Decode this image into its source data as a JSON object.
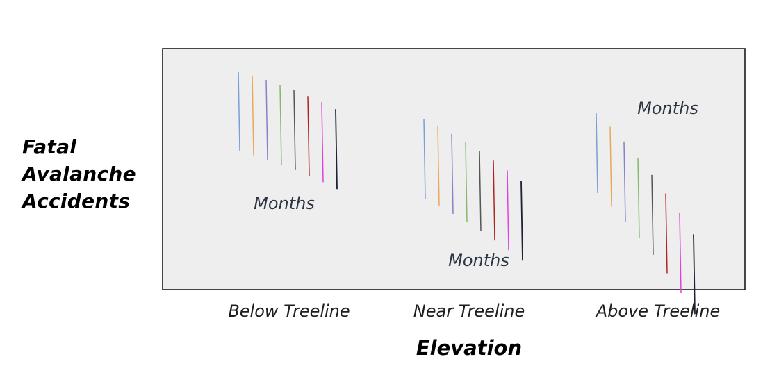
{
  "diagram": {
    "y_title_lines": [
      "Fatal",
      "Avalanche",
      "Accidents"
    ],
    "x_title": "Elevation",
    "categories": [
      "Below Treeline",
      "Near Treeline",
      "Above Treeline"
    ],
    "months_label": "Months"
  },
  "colors": {
    "panel_fill": "#eeeeee",
    "panel_border": "#1a1a1a",
    "months_text": "#2b3442",
    "month_lines": [
      "#7b9ed6",
      "#e8a85a",
      "#8a7fc9",
      "#86b86a",
      "#555555",
      "#b22222",
      "#e040e0",
      "#1b2333"
    ]
  }
}
